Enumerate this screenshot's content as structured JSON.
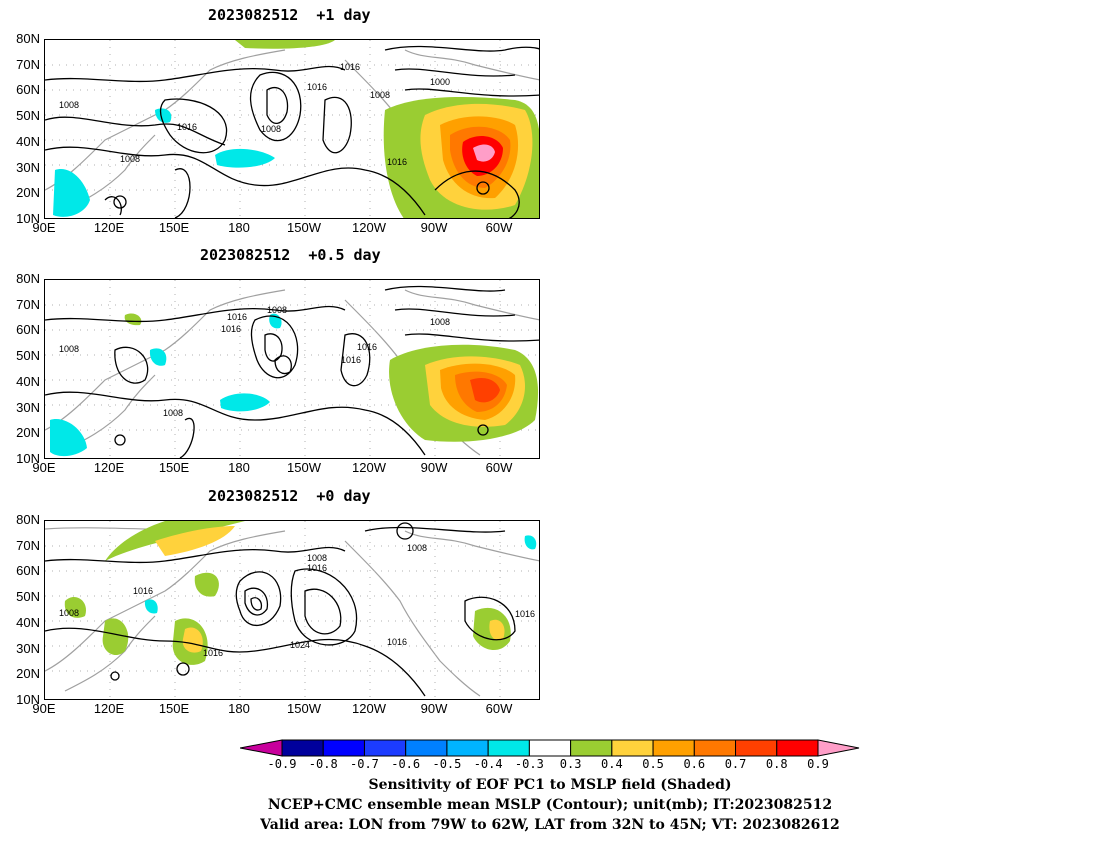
{
  "panels": [
    {
      "title": "2023082512  +1 day",
      "contour_labels": [
        "1016",
        "1000",
        "1016",
        "1008",
        "1008",
        "1016",
        "1008",
        "1008",
        "1016"
      ]
    },
    {
      "title": "2023082512  +0.5 day",
      "contour_labels": [
        "1008",
        "1016",
        "1016",
        "1008",
        "1008",
        "1016",
        "1016",
        "1008"
      ]
    },
    {
      "title": "2023082512  +0 day",
      "contour_labels": [
        "1008",
        "1016",
        "1008",
        "1016",
        "1008",
        "1024",
        "1016",
        "1016",
        "1016"
      ]
    }
  ],
  "y_ticks": [
    "80N",
    "70N",
    "60N",
    "50N",
    "40N",
    "30N",
    "20N",
    "10N"
  ],
  "x_ticks": [
    "90E",
    "120E",
    "150E",
    "180",
    "150W",
    "120W",
    "90W",
    "60W"
  ],
  "colorbar": {
    "labels": [
      "-0.9",
      "-0.8",
      "-0.7",
      "-0.6",
      "-0.5",
      "-0.4",
      "-0.3",
      "0.3",
      "0.4",
      "0.5",
      "0.6",
      "0.7",
      "0.8",
      "0.9"
    ],
    "colors": [
      "#c8009c",
      "#00009c",
      "#0000ff",
      "#1c3cff",
      "#0080ff",
      "#00b4ff",
      "#00e8e8",
      "#ffffff",
      "#9acd32",
      "#ffd23c",
      "#ffa000",
      "#ff7800",
      "#ff4000",
      "#ff0000",
      "#ff9ec8"
    ]
  },
  "caption": {
    "line1": "Sensitivity of EOF PC1 to MSLP field (Shaded)",
    "line2": "NCEP+CMC ensemble mean MSLP (Contour); unit(mb); IT:2023082512",
    "line3": "Valid area: LON from 79W to 62W, LAT from 32N to 45N; VT: 2023082612"
  }
}
